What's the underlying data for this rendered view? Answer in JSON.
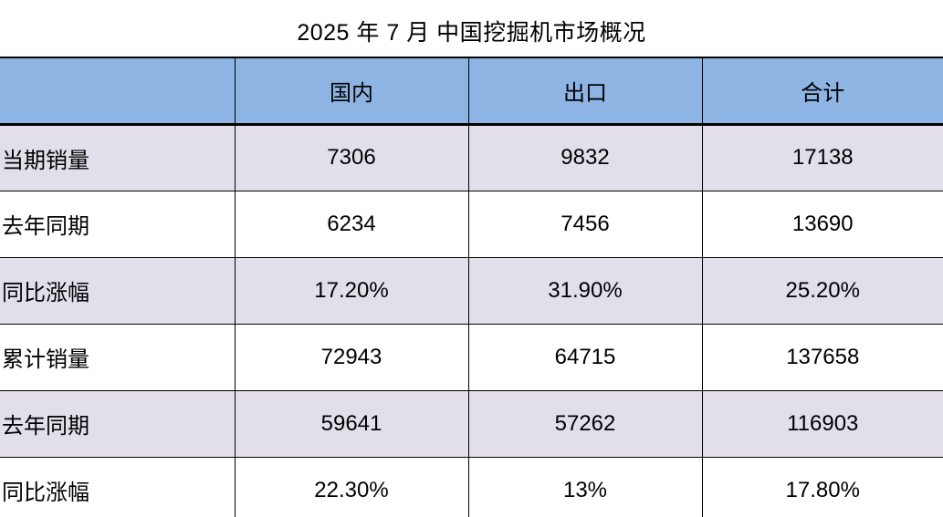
{
  "title": "2025 年 7 月 中国挖掘机市场概况",
  "chart_data": {
    "type": "table",
    "title": "2025 年 7 月 中国挖掘机市场概况",
    "columns": [
      "",
      "国内",
      "出口",
      "合计"
    ],
    "rows": [
      {
        "label": "当期销量",
        "values": [
          "7306",
          "9832",
          "17138"
        ]
      },
      {
        "label": "去年同期",
        "values": [
          "6234",
          "7456",
          "13690"
        ]
      },
      {
        "label": "同比涨幅",
        "values": [
          "17.20%",
          "31.90%",
          "25.20%"
        ]
      },
      {
        "label": "累计销量",
        "values": [
          "72943",
          "64715",
          "137658"
        ]
      },
      {
        "label": "去年同期",
        "values": [
          "59641",
          "57262",
          "116903"
        ]
      },
      {
        "label": "同比涨幅",
        "values": [
          "22.30%",
          "13%",
          "17.80%"
        ]
      }
    ]
  },
  "colors": {
    "header_bg": "#8EB4E3",
    "alt_row_bg": "#E2DFEB",
    "row_bg": "#FFFFFF",
    "border": "#000000",
    "text": "#000000"
  }
}
